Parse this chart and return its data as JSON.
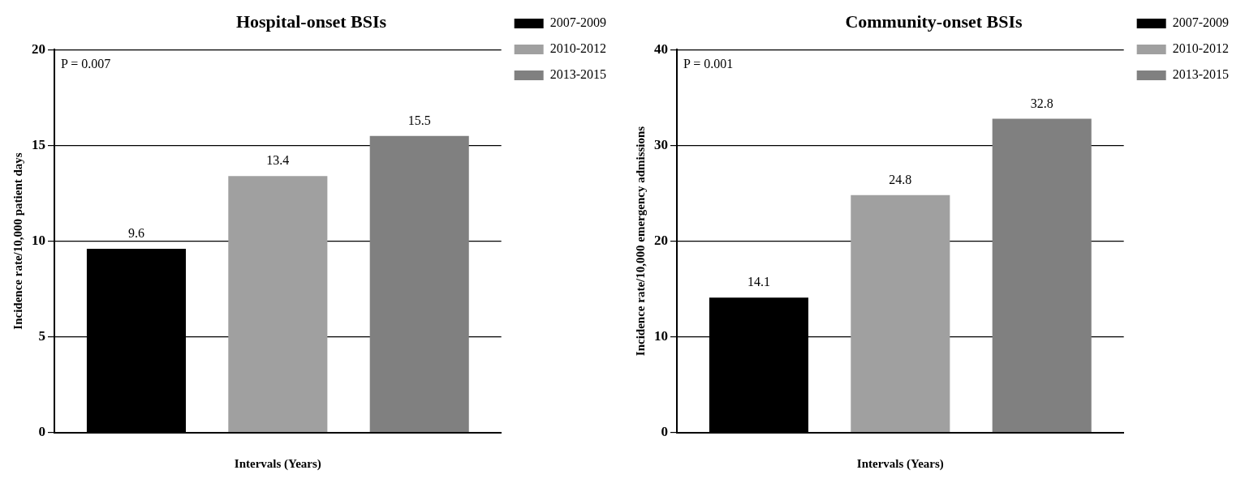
{
  "chart_data": [
    {
      "type": "bar",
      "title": "Hospital-onset BSIs",
      "xlabel": "Intervals (Years)",
      "ylabel": "Incidence rate/10,000 patient days",
      "categories": [
        null
      ],
      "series": [
        {
          "name": "2007-2009",
          "color": "#000000",
          "values": [
            9.6
          ]
        },
        {
          "name": "2010-2012",
          "color": "#a0a0a0",
          "values": [
            13.4
          ]
        },
        {
          "name": "2013-2015",
          "color": "#808080",
          "values": [
            15.5
          ]
        }
      ],
      "ylim": [
        0,
        20
      ],
      "yticks": [
        0,
        5,
        10,
        15,
        20
      ],
      "grid": "y",
      "legend": "top right",
      "data_labels": true,
      "annotations": [
        "P = 0.007"
      ]
    },
    {
      "type": "bar",
      "title": "Community-onset BSIs",
      "xlabel": "Intervals (Years)",
      "ylabel": "Incidence rate/10,000 emergency admissions",
      "categories": [
        null
      ],
      "series": [
        {
          "name": "2007-2009",
          "color": "#000000",
          "values": [
            14.1
          ]
        },
        {
          "name": "2010-2012",
          "color": "#a0a0a0",
          "values": [
            24.8
          ]
        },
        {
          "name": "2013-2015",
          "color": "#808080",
          "values": [
            32.8
          ]
        }
      ],
      "ylim": [
        0,
        40
      ],
      "yticks": [
        0,
        10,
        20,
        30,
        40
      ],
      "grid": "y",
      "legend": "top right",
      "data_labels": true,
      "annotations": [
        "P = 0.001"
      ]
    }
  ]
}
